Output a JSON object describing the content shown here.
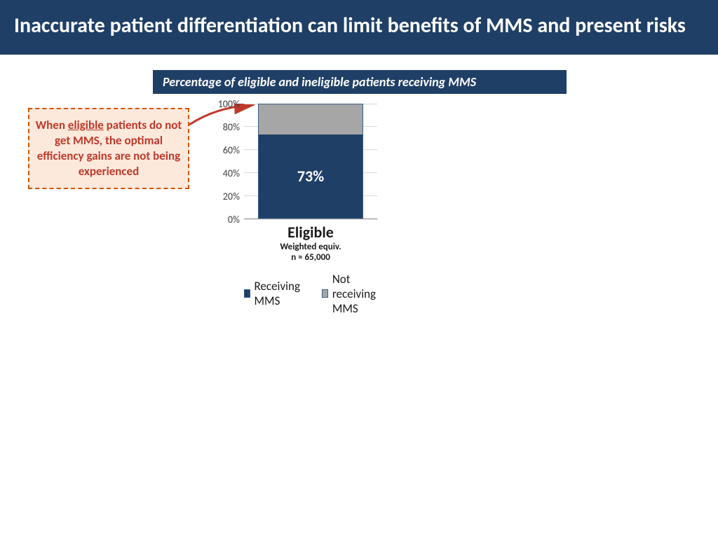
{
  "header": {
    "title": "Inaccurate patient differentiation can limit benefits of MMS and present risks"
  },
  "subtitle": "Percentage of eligible and ineligible patients receiving MMS",
  "callout": {
    "pre": "When ",
    "underlined": "eligible",
    "post": " patients do not get MMS, the optimal efficiency gains are not being experienced"
  },
  "chart": {
    "type": "stacked-bar-100",
    "yticks": [
      "100%",
      "80%",
      "60%",
      "40%",
      "20%",
      "0%"
    ],
    "category": "Eligible",
    "sub1": "Weighted equiv.",
    "sub2": "n ≈ 65,000",
    "receiving_pct": 73,
    "not_receiving_pct": 27,
    "bar_label": "73%",
    "colors": {
      "receiving": "#1f3f66",
      "not_receiving": "#a6a6a6",
      "border": "#385d8a",
      "grid": "#d9d9d9"
    },
    "legend": {
      "receiving": "Receiving MMS",
      "not_receiving": "Not receiving MMS"
    }
  }
}
